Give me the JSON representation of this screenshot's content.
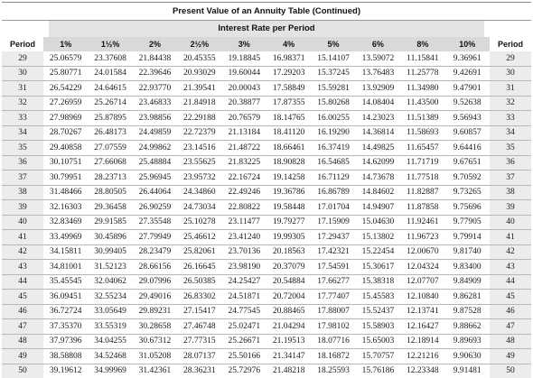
{
  "title": "Present Value of an Annuity Table (Continued)",
  "subtitle": "Interest Rate per Period",
  "columns": {
    "period_left": "Period",
    "rates": [
      "1%",
      "1½%",
      "2%",
      "2½%",
      "3%",
      "4%",
      "5%",
      "6%",
      "8%",
      "10%"
    ],
    "period_right": "Period"
  },
  "rows": [
    [
      "29",
      "25.06579",
      "23.37608",
      "21.84438",
      "20.45355",
      "19.18845",
      "16.98371",
      "15.14107",
      "13.59072",
      "11.15841",
      "9.36961",
      "29"
    ],
    [
      "30",
      "25.80771",
      "24.01584",
      "22.39646",
      "20.93029",
      "19.60044",
      "17.29203",
      "15.37245",
      "13.76483",
      "11.25778",
      "9.42691",
      "30"
    ],
    [
      "31",
      "26.54229",
      "24.64615",
      "22.93770",
      "21.39541",
      "20.00043",
      "17.58849",
      "15.59281",
      "13.92909",
      "11.34980",
      "9.47901",
      "31"
    ],
    [
      "32",
      "27.26959",
      "25.26714",
      "23.46833",
      "21.84918",
      "20.38877",
      "17.87355",
      "15.80268",
      "14.08404",
      "11.43500",
      "9.52638",
      "32"
    ],
    [
      "33",
      "27.98969",
      "25.87895",
      "23.98856",
      "22.29188",
      "20.76579",
      "18.14765",
      "16.00255",
      "14.23023",
      "11.51389",
      "9.56943",
      "33"
    ],
    [
      "34",
      "28.70267",
      "26.48173",
      "24.49859",
      "22.72379",
      "21.13184",
      "18.41120",
      "16.19290",
      "14.36814",
      "11.58693",
      "9.60857",
      "34"
    ],
    [
      "35",
      "29.40858",
      "27.07559",
      "24.99862",
      "23.14516",
      "21.48722",
      "18.66461",
      "16.37419",
      "14.49825",
      "11.65457",
      "9.64416",
      "35"
    ],
    [
      "36",
      "30.10751",
      "27.66068",
      "25.48884",
      "23.55625",
      "21.83225",
      "18.90828",
      "16.54685",
      "14.62099",
      "11.71719",
      "9.67651",
      "36"
    ],
    [
      "37",
      "30.79951",
      "28.23713",
      "25.96945",
      "23.95732",
      "22.16724",
      "19.14258",
      "16.71129",
      "14.73678",
      "11.77518",
      "9.70592",
      "37"
    ],
    [
      "38",
      "31.48466",
      "28.80505",
      "26.44064",
      "24.34860",
      "22.49246",
      "19.36786",
      "16.86789",
      "14.84602",
      "11.82887",
      "9.73265",
      "38"
    ],
    [
      "39",
      "32.16303",
      "29.36458",
      "26.90259",
      "24.73034",
      "22.80822",
      "19.58448",
      "17.01704",
      "14.94907",
      "11.87858",
      "9.75696",
      "39"
    ],
    [
      "40",
      "32.83469",
      "29.91585",
      "27.35548",
      "25.10278",
      "23.11477",
      "19.79277",
      "17.15909",
      "15.04630",
      "11.92461",
      "9.77905",
      "40"
    ],
    [
      "41",
      "33.49969",
      "30.45896",
      "27.79949",
      "25.46612",
      "23.41240",
      "19.99305",
      "17.29437",
      "15.13802",
      "11.96723",
      "9.79914",
      "41"
    ],
    [
      "42",
      "34.15811",
      "30.99405",
      "28.23479",
      "25.82061",
      "23.70136",
      "20.18563",
      "17.42321",
      "15.22454",
      "12.00670",
      "9.81740",
      "42"
    ],
    [
      "43",
      "34.81001",
      "31.52123",
      "28.66156",
      "26.16645",
      "23.98190",
      "20.37079",
      "17.54591",
      "15.30617",
      "12.04324",
      "9.83400",
      "43"
    ],
    [
      "44",
      "35.45545",
      "32.04062",
      "29.07996",
      "26.50385",
      "24.25427",
      "20.54884",
      "17.66277",
      "15.38318",
      "12.07707",
      "9.84909",
      "44"
    ],
    [
      "45",
      "36.09451",
      "32.55234",
      "29.49016",
      "26.83302",
      "24.51871",
      "20.72004",
      "17.77407",
      "15.45583",
      "12.10840",
      "9.86281",
      "45"
    ],
    [
      "46",
      "36.72724",
      "33.05649",
      "29.89231",
      "27.15417",
      "24.77545",
      "20.88465",
      "17.88007",
      "15.52437",
      "12.13741",
      "9.87528",
      "46"
    ],
    [
      "47",
      "37.35370",
      "33.55319",
      "30.28658",
      "27.46748",
      "25.02471",
      "21.04294",
      "17.98102",
      "15.58903",
      "12.16427",
      "9.88662",
      "47"
    ],
    [
      "48",
      "37.97396",
      "34.04255",
      "30.67312",
      "27.77315",
      "25.26671",
      "21.19513",
      "18.07716",
      "15.65003",
      "12.18914",
      "9.89693",
      "48"
    ],
    [
      "49",
      "38.58808",
      "34.52468",
      "31.05208",
      "28.07137",
      "25.50166",
      "21.34147",
      "18.16872",
      "15.70757",
      "12.21216",
      "9.90630",
      "49"
    ],
    [
      "50",
      "39.19612",
      "34.99969",
      "31.42361",
      "28.36231",
      "25.72976",
      "21.48218",
      "18.25593",
      "15.76186",
      "12.23348",
      "9.91481",
      "50"
    ]
  ]
}
